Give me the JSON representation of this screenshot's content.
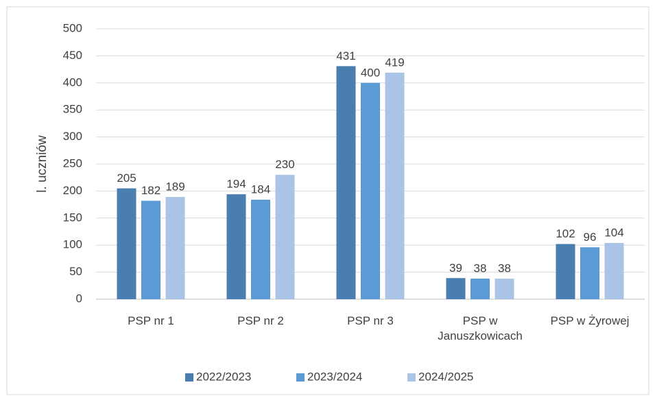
{
  "chart_data": {
    "type": "bar",
    "y_label": "l. uczniów",
    "categories": [
      "PSP nr 1",
      "PSP nr 2",
      "PSP nr 3",
      "PSP w Januszkowicach",
      "PSP w Żyrowej"
    ],
    "series": [
      {
        "name": "2022/2023",
        "color": "#4a7eb0",
        "values": [
          205,
          194,
          431,
          39,
          102
        ]
      },
      {
        "name": "2023/2024",
        "color": "#5b9bd5",
        "values": [
          182,
          184,
          400,
          38,
          96
        ]
      },
      {
        "name": "2024/2025",
        "color": "#a9c4e6",
        "values": [
          189,
          230,
          419,
          38,
          104
        ]
      }
    ],
    "ylim": [
      0,
      500
    ],
    "yticks": [
      0,
      50,
      100,
      150,
      200,
      250,
      300,
      350,
      400,
      450,
      500
    ],
    "grid": true,
    "legend": "bottom"
  }
}
